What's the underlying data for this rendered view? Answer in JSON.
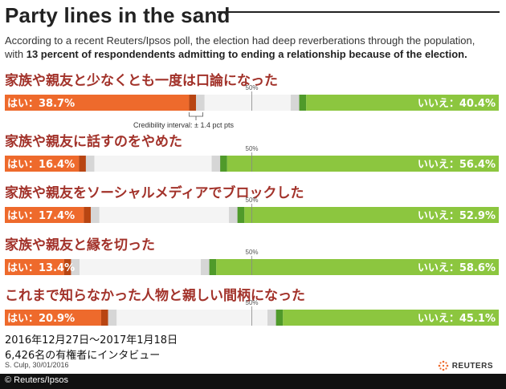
{
  "header": {
    "title": "Party lines in the sand",
    "subtitle_intro": "According to a recent Reuters/Ipsos poll, the election had deep reverberations through the population, with ",
    "subtitle_bold": "13 percent of respondendents admitting to ending a relationship because of the election."
  },
  "chart_data": {
    "type": "bar",
    "subtype": "diverging-stacked-horizontal",
    "midpoint_label": "50%",
    "credibility_label": "Credibility interval: ± 1.4 pct pts",
    "credibility_interval_pct": 1.4,
    "categories": [
      "家族や親友と少なくとも一度は口論になった",
      "家族や親友に話すのをやめた",
      "家族や親友をソーシャルメディアでブロックした",
      "家族や親友と縁を切った",
      "これまで知らなかった人物と親しい間柄になった"
    ],
    "series": [
      {
        "name": "はい",
        "values": [
          38.7,
          16.4,
          17.4,
          13.4,
          20.9
        ]
      },
      {
        "name": "いいえ",
        "values": [
          40.4,
          56.4,
          52.9,
          58.6,
          45.1
        ]
      }
    ],
    "yes_labels": [
      "はい：38.7%",
      "はい：16.4%",
      "はい：17.4%",
      "はい：13.4%",
      "はい：20.9%"
    ],
    "no_labels": [
      "いいえ：40.4%",
      "いいえ：56.4%",
      "いいえ：52.9%",
      "いいえ：58.6%",
      "いいえ：45.1%"
    ],
    "xlim": [
      0,
      100
    ],
    "colors": {
      "yes": "#ee6a2c",
      "yes_ci": "#b84512",
      "no": "#8cc63f",
      "no_ci": "#4f9a2a",
      "neutral": "#f4f4f4",
      "ci_gray": "#d6d6d6",
      "question_text": "#a2322a"
    }
  },
  "footer": {
    "date_range": "2016年12月27日〜2017年1月18日",
    "sample": "6,426名の有権者にインタビュー",
    "credit": "S. Culp,  30/01/2016",
    "logo": "REUTERS",
    "copyright": "© Reuters/Ipsos"
  }
}
